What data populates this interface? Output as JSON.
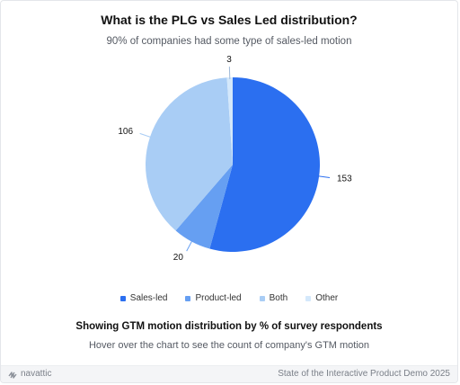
{
  "chart_data": {
    "type": "pie",
    "title": "What is the PLG vs Sales Led distribution?",
    "subtitle": "90% of companies had some type of sales-led motion",
    "slices": [
      {
        "name": "Sales-led",
        "value": 153,
        "color": "#2b6ff0"
      },
      {
        "name": "Product-led",
        "value": 20,
        "color": "#669ff2"
      },
      {
        "name": "Both",
        "value": 106,
        "color": "#a9cdf5"
      },
      {
        "name": "Other",
        "value": 3,
        "color": "#d4e8fb"
      }
    ],
    "legend_position": "bottom"
  },
  "caption": {
    "title": "Showing GTM motion distribution by % of survey respondents",
    "subtitle": "Hover over the chart to see the count of company's GTM motion"
  },
  "footer": {
    "brand": "navattic",
    "brand_icon": "navattic-logo-icon",
    "report": "State of the Interactive Product Demo 2025"
  }
}
